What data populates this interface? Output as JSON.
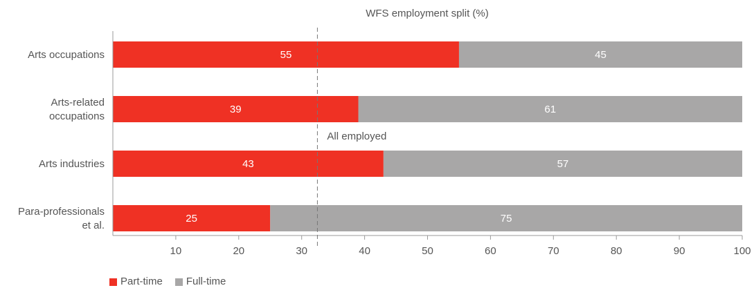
{
  "chart_data": {
    "type": "bar",
    "orientation": "horizontal",
    "stacked": true,
    "title": "WFS employment split (%)",
    "categories": [
      "Arts occupations",
      "Arts-related\noccupations",
      "Arts industries",
      "Para-professionals\net al."
    ],
    "series": [
      {
        "name": "Part-time",
        "color": "#ef3124",
        "values": [
          55,
          39,
          43,
          25
        ]
      },
      {
        "name": "Full-time",
        "color": "#a8a7a7",
        "values": [
          45,
          61,
          57,
          75
        ]
      }
    ],
    "xlim": [
      0,
      100
    ],
    "xticks": [
      10,
      20,
      30,
      40,
      50,
      60,
      70,
      80,
      90,
      100
    ],
    "reference_line": {
      "label": "All employed",
      "value": 32.5
    },
    "grid": false,
    "legend_position": "bottom-left"
  }
}
